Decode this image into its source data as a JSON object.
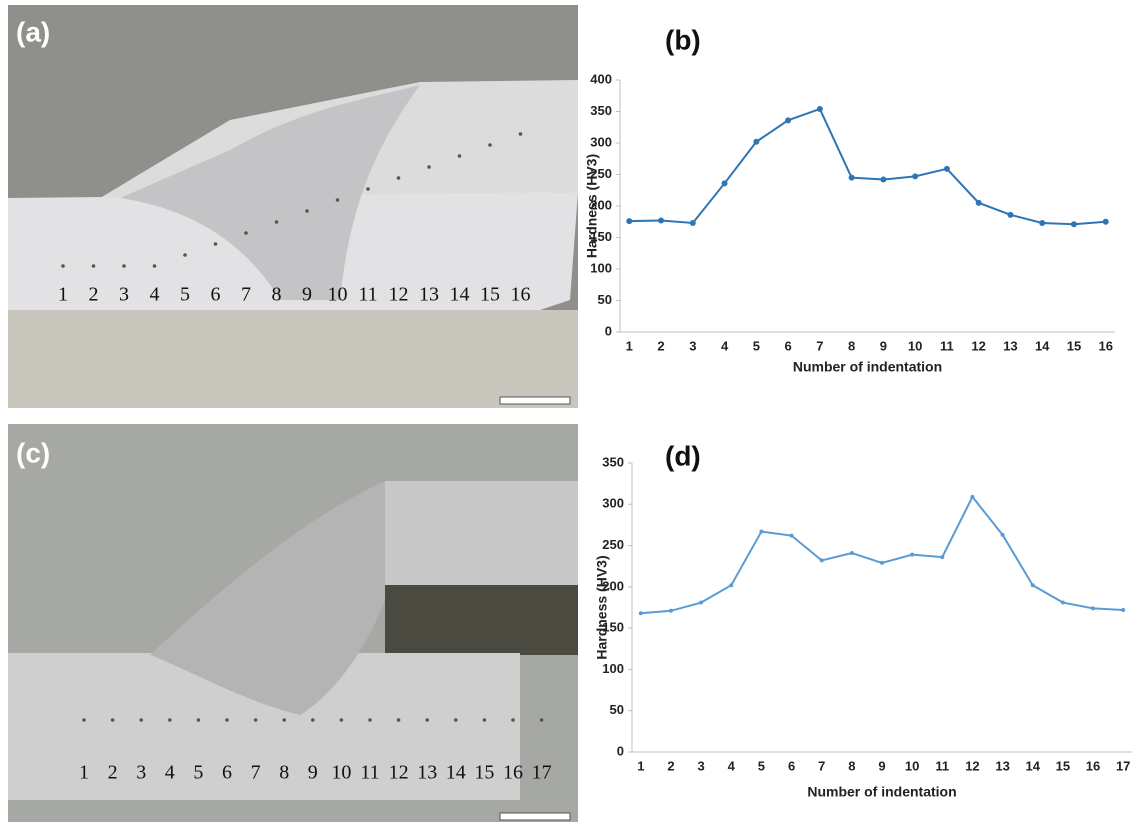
{
  "panels": [
    {
      "label": "(a)",
      "indent_labels": [
        "1",
        "2",
        "3",
        "4",
        "5",
        "6",
        "7",
        "8",
        "9",
        "10",
        "11",
        "12",
        "13",
        "14",
        "15",
        "16"
      ]
    },
    {
      "label": "(c)",
      "indent_labels": [
        "1",
        "2",
        "3",
        "4",
        "5",
        "6",
        "7",
        "8",
        "9",
        "10",
        "11",
        "12",
        "13",
        "14",
        "15",
        "16",
        "17"
      ]
    }
  ],
  "chart_data": [
    {
      "type": "line",
      "title": "(b)",
      "x_label": "Number of indentation",
      "y_label": "Hardness (HV3)",
      "categories": [
        "1",
        "2",
        "3",
        "4",
        "5",
        "6",
        "7",
        "8",
        "9",
        "10",
        "11",
        "12",
        "13",
        "14",
        "15",
        "16"
      ],
      "series": [
        {
          "color": "#2e75b6",
          "values": [
            176,
            177,
            173,
            236,
            302,
            336,
            354,
            245,
            242,
            247,
            259,
            205,
            186,
            173,
            171,
            175
          ]
        }
      ],
      "ylim": [
        0,
        400
      ],
      "yticks": [
        0,
        50,
        100,
        150,
        200,
        250,
        300,
        350,
        400
      ],
      "grid": false
    },
    {
      "type": "line",
      "title": "(d)",
      "x_label": "Number of indentation",
      "y_label": "Hardness (HV3)",
      "categories": [
        "1",
        "2",
        "3",
        "4",
        "5",
        "6",
        "7",
        "8",
        "9",
        "10",
        "11",
        "12",
        "13",
        "14",
        "15",
        "16",
        "17"
      ],
      "series": [
        {
          "color": "#5b9bd5",
          "values": [
            168,
            171,
            181,
            202,
            267,
            262,
            232,
            241,
            229,
            239,
            236,
            309,
            263,
            202,
            181,
            174,
            172
          ]
        }
      ],
      "ylim": [
        0,
        350
      ],
      "yticks": [
        0,
        50,
        100,
        150,
        200,
        250,
        300,
        350
      ],
      "grid": false
    }
  ]
}
